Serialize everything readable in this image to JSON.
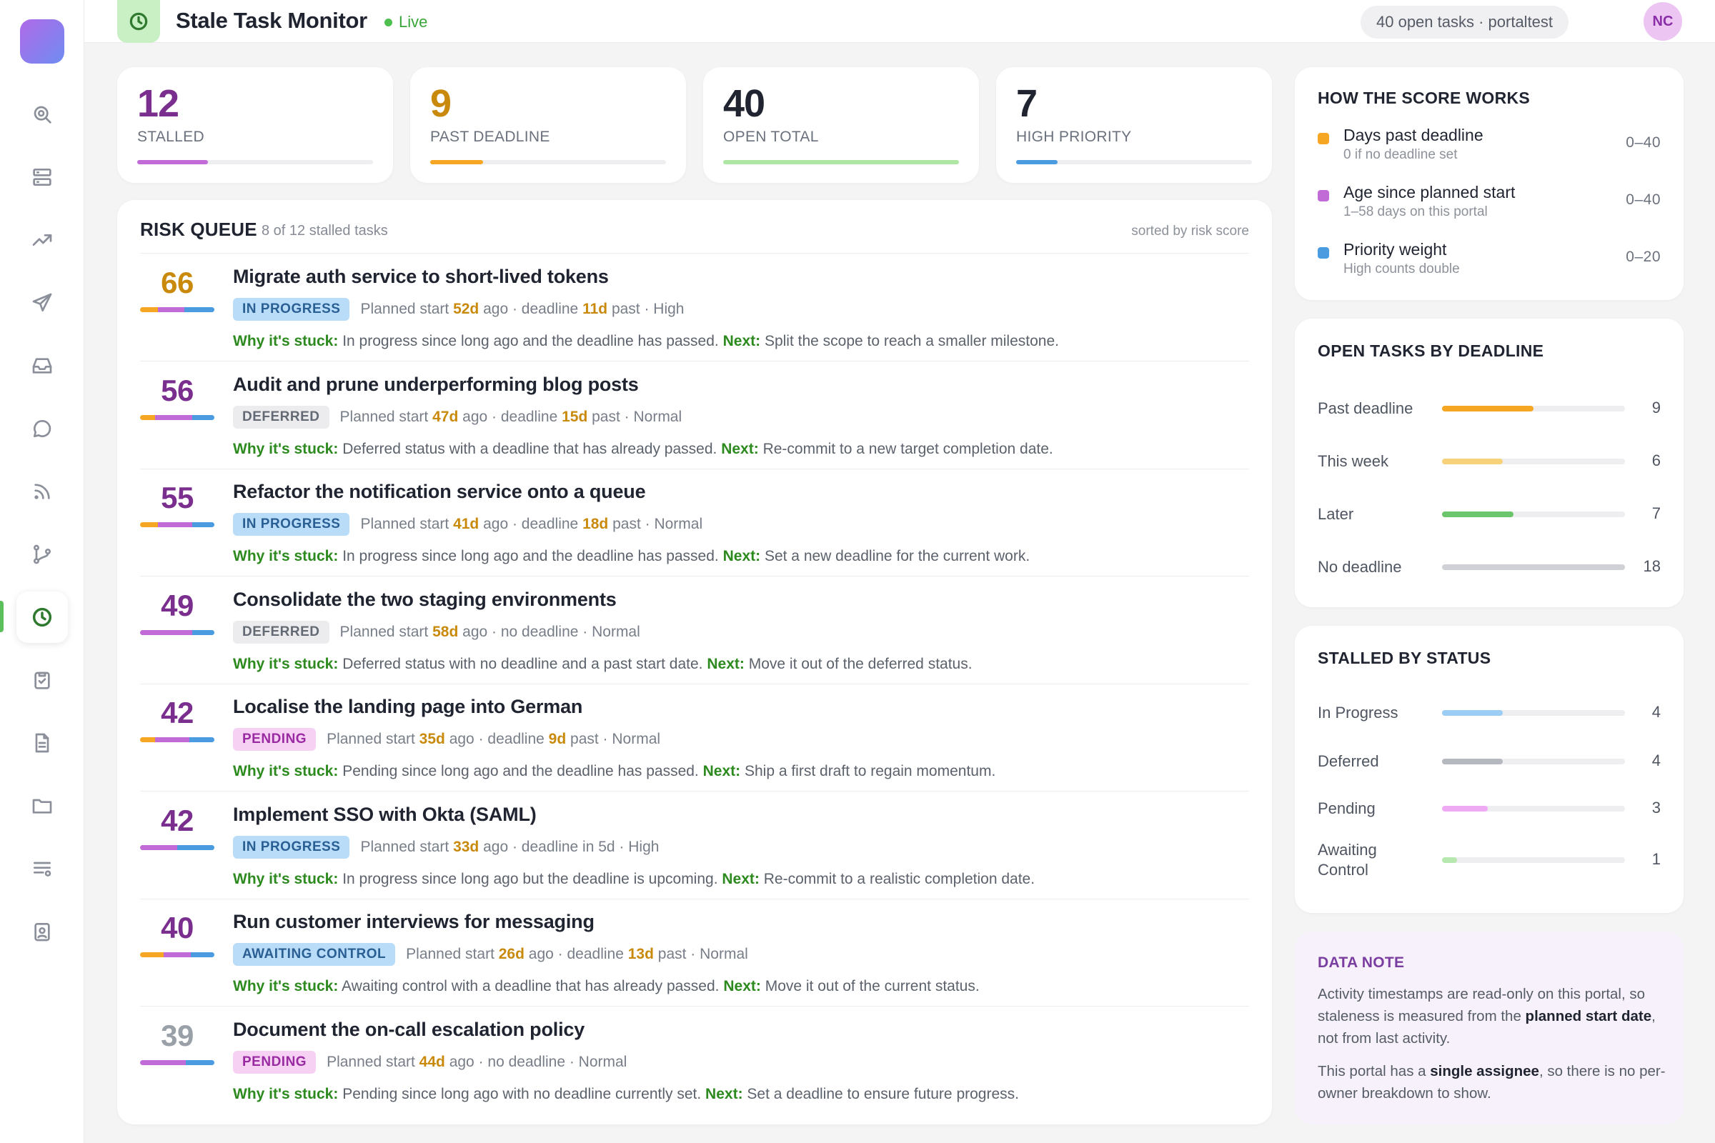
{
  "app": {
    "title": "Stale Task Monitor",
    "live_label": "Live",
    "scope": "40 open tasks · portaltest",
    "user_initials": "NC"
  },
  "sidebar": {
    "items": [
      {
        "icon": "search-icon"
      },
      {
        "icon": "server-icon"
      },
      {
        "icon": "trending-up-icon"
      },
      {
        "icon": "send-icon"
      },
      {
        "icon": "inbox-icon"
      },
      {
        "icon": "chat-bubble-icon"
      },
      {
        "icon": "rss-icon"
      },
      {
        "icon": "git-branch-icon"
      },
      {
        "icon": "clock-icon",
        "active": true
      },
      {
        "icon": "clipboard-check-icon"
      },
      {
        "icon": "document-icon"
      },
      {
        "icon": "folder-icon"
      },
      {
        "icon": "list-settings-icon"
      },
      {
        "icon": "id-badge-icon"
      }
    ]
  },
  "stats": [
    {
      "value": "12",
      "label": "STALLED",
      "color": "#7a2e8e",
      "bar_color": "#c06bd6",
      "fraction": 0.3
    },
    {
      "value": "9",
      "label": "PAST DEADLINE",
      "color": "#c98a0c",
      "bar_color": "#f5a623",
      "fraction": 0.225
    },
    {
      "value": "40",
      "label": "OPEN TOTAL",
      "color": "#1f2430",
      "bar_color": "#aee7a4",
      "fraction": 1.0
    },
    {
      "value": "7",
      "label": "HIGH PRIORITY",
      "color": "#1f2430",
      "bar_color": "#4a9be0",
      "fraction": 0.175
    }
  ],
  "queue": {
    "title": "RISK QUEUE",
    "subtitle": "8 of 12 stalled tasks",
    "sort_label": "sorted by risk score",
    "why_label": "Why it's stuck:",
    "next_label": "Next:",
    "tasks": [
      {
        "score": "66",
        "score_color": "#c98a0c",
        "parts": [
          0.24,
          0.36,
          0.4
        ],
        "title": "Migrate auth service to short-lived tokens",
        "status": "IN PROGRESS",
        "status_kind": "progress",
        "start_prefix": "Planned start",
        "start_days": "52d",
        "start_suffix": "ago · deadline",
        "deadline_days": "11d",
        "deadline_suffix": "past · High",
        "why": "In progress since long ago and the deadline has passed.",
        "next": "Split the scope to reach a smaller milestone."
      },
      {
        "score": "56",
        "score_color": "#7a2e8e",
        "parts": [
          0.2,
          0.5,
          0.3
        ],
        "title": "Audit and prune underperforming blog posts",
        "status": "DEFERRED",
        "status_kind": "deferred",
        "start_prefix": "Planned start",
        "start_days": "47d",
        "start_suffix": "ago · deadline",
        "deadline_days": "15d",
        "deadline_suffix": "past · Normal",
        "why": "Deferred status with a deadline that has already passed.",
        "next": "Re-commit to a new target completion date."
      },
      {
        "score": "55",
        "score_color": "#7a2e8e",
        "parts": [
          0.24,
          0.46,
          0.3
        ],
        "title": "Refactor the notification service onto a queue",
        "status": "IN PROGRESS",
        "status_kind": "progress",
        "start_prefix": "Planned start",
        "start_days": "41d",
        "start_suffix": "ago · deadline",
        "deadline_days": "18d",
        "deadline_suffix": "past · Normal",
        "why": "In progress since long ago and the deadline has passed.",
        "next": "Set a new deadline for the current work."
      },
      {
        "score": "49",
        "score_color": "#7a2e8e",
        "parts": [
          0.0,
          0.7,
          0.3
        ],
        "title": "Consolidate the two staging environments",
        "status": "DEFERRED",
        "status_kind": "deferred",
        "start_prefix": "Planned start",
        "start_days": "58d",
        "start_suffix": "ago · no deadline · Normal",
        "deadline_days": "",
        "deadline_suffix": "",
        "why": "Deferred status with no deadline and a past start date.",
        "next": "Move it out of the deferred status."
      },
      {
        "score": "42",
        "score_color": "#7a2e8e",
        "parts": [
          0.2,
          0.46,
          0.34
        ],
        "title": "Localise the landing page into German",
        "status": "PENDING",
        "status_kind": "pending",
        "start_prefix": "Planned start",
        "start_days": "35d",
        "start_suffix": "ago · deadline",
        "deadline_days": "9d",
        "deadline_suffix": "past · Normal",
        "why": "Pending since long ago and the deadline has passed.",
        "next": "Ship a first draft to regain momentum."
      },
      {
        "score": "42",
        "score_color": "#7a2e8e",
        "parts": [
          0.0,
          0.5,
          0.5
        ],
        "title": "Implement SSO with Okta (SAML)",
        "status": "IN PROGRESS",
        "status_kind": "progress",
        "start_prefix": "Planned start",
        "start_days": "33d",
        "start_suffix": "ago · deadline in 5d · High",
        "deadline_days": "",
        "deadline_suffix": "",
        "why": "In progress since long ago but the deadline is upcoming.",
        "next": "Re-commit to a realistic completion date."
      },
      {
        "score": "40",
        "score_color": "#7a2e8e",
        "parts": [
          0.32,
          0.36,
          0.32
        ],
        "title": "Run customer interviews for messaging",
        "status": "AWAITING CONTROL",
        "status_kind": "awaiting",
        "start_prefix": "Planned start",
        "start_days": "26d",
        "start_suffix": "ago · deadline",
        "deadline_days": "13d",
        "deadline_suffix": "past · Normal",
        "why": "Awaiting control with a deadline that has already passed.",
        "next": "Move it out of the current status."
      },
      {
        "score": "39",
        "score_color": "#9aa0a8",
        "parts": [
          0.0,
          0.62,
          0.38
        ],
        "title": "Document the on-call escalation policy",
        "status": "PENDING",
        "status_kind": "pending",
        "start_prefix": "Planned start",
        "start_days": "44d",
        "start_suffix": "ago · no deadline · Normal",
        "deadline_days": "",
        "deadline_suffix": "",
        "why": "Pending since long ago with no deadline currently set.",
        "next": "Set a deadline to ensure future progress."
      }
    ]
  },
  "score_works": {
    "title": "HOW THE SCORE WORKS",
    "items": [
      {
        "label": "Days past deadline",
        "sub": "0 if no deadline set",
        "range": "0–40",
        "color": "#f5a623"
      },
      {
        "label": "Age since planned start",
        "sub": "1–58 days on this portal",
        "range": "0–40",
        "color": "#c06bd6"
      },
      {
        "label": "Priority weight",
        "sub": "High counts double",
        "range": "0–20",
        "color": "#4a9be0"
      }
    ]
  },
  "by_deadline": {
    "title": "OPEN TASKS BY DEADLINE",
    "max": 18,
    "rows": [
      {
        "label": "Past deadline",
        "count": 9,
        "color": "#f5a623"
      },
      {
        "label": "This week",
        "count": 6,
        "color": "#f7d27a"
      },
      {
        "label": "Later",
        "count": 7,
        "color": "#6cc46c"
      },
      {
        "label": "No deadline",
        "count": 18,
        "color": "#cfd1d6"
      }
    ]
  },
  "by_status": {
    "title": "STALLED BY STATUS",
    "max": 12,
    "rows": [
      {
        "label": "In Progress",
        "count": 4,
        "color": "#9ccdf4"
      },
      {
        "label": "Deferred",
        "count": 4,
        "color": "#b5b8bf"
      },
      {
        "label": "Pending",
        "count": 3,
        "color": "#eeaaf2"
      },
      {
        "label": "Awaiting Control",
        "count": 1,
        "color": "#b7e8b0"
      }
    ]
  },
  "data_note": {
    "title": "DATA NOTE",
    "p1_a": "Activity timestamps are read-only on this portal, so staleness is measured from the ",
    "p1_b": "planned start date",
    "p1_c": ", not from last activity.",
    "p2_a": "This portal has a ",
    "p2_b": "single assignee",
    "p2_c": ", so there is no per-owner breakdown to show."
  }
}
